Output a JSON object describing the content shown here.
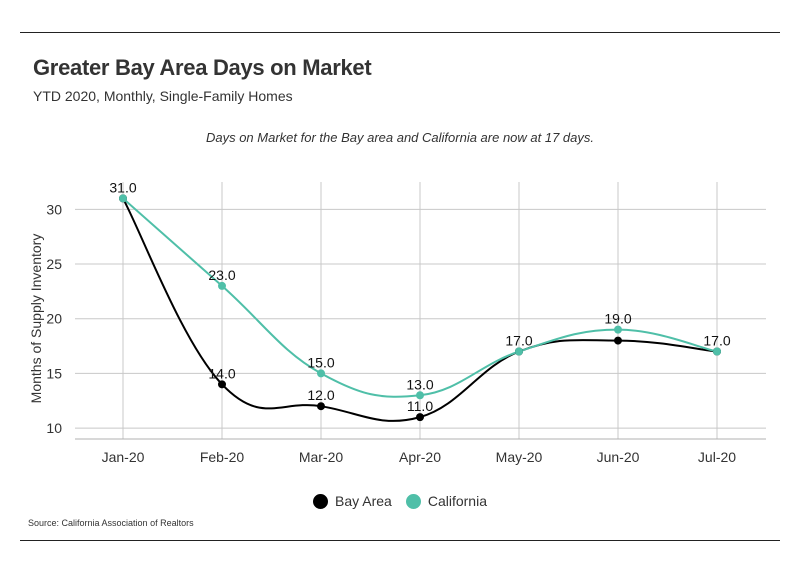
{
  "header": {
    "title": "Greater Bay Area Days on Market",
    "subtitle": "YTD 2020, Monthly, Single-Family Homes"
  },
  "note": "Days on Market for the Bay area and California are now at 17 days.",
  "source": "Source:  California Association of Realtors",
  "colors": {
    "bay_area": "#000000",
    "california": "#4fbfa8"
  },
  "chart_data": {
    "type": "line",
    "categories": [
      "Jan-20",
      "Feb-20",
      "Mar-20",
      "Apr-20",
      "May-20",
      "Jun-20",
      "Jul-20"
    ],
    "series": [
      {
        "name": "Bay Area",
        "values": [
          31.0,
          14.0,
          12.0,
          11.0,
          17.0,
          18.0,
          17.0
        ]
      },
      {
        "name": "California",
        "values": [
          31.0,
          23.0,
          15.0,
          13.0,
          17.0,
          19.0,
          17.0
        ]
      }
    ],
    "data_labels": [
      {
        "category": "Jan-20",
        "text": "31.0"
      },
      {
        "category": "Feb-20",
        "text": "23.0",
        "series": "California"
      },
      {
        "category": "Feb-20",
        "text": "14.0",
        "series": "Bay Area"
      },
      {
        "category": "Mar-20",
        "text": "15.0",
        "series": "California"
      },
      {
        "category": "Mar-20",
        "text": "12.0",
        "series": "Bay Area"
      },
      {
        "category": "Apr-20",
        "text": "13.0",
        "series": "California"
      },
      {
        "category": "Apr-20",
        "text": "11.0",
        "series": "Bay Area"
      },
      {
        "category": "May-20",
        "text": "17.0"
      },
      {
        "category": "Jun-20",
        "text": "19.0",
        "series": "California"
      },
      {
        "category": "Jul-20",
        "text": "17.0"
      }
    ],
    "ylabel": "Months of Supply Inventory",
    "xlabel": "",
    "ylim": [
      9,
      32.5
    ],
    "yticks": [
      10,
      15,
      20,
      25,
      30
    ],
    "grid": true,
    "legend_position": "bottom-center"
  }
}
